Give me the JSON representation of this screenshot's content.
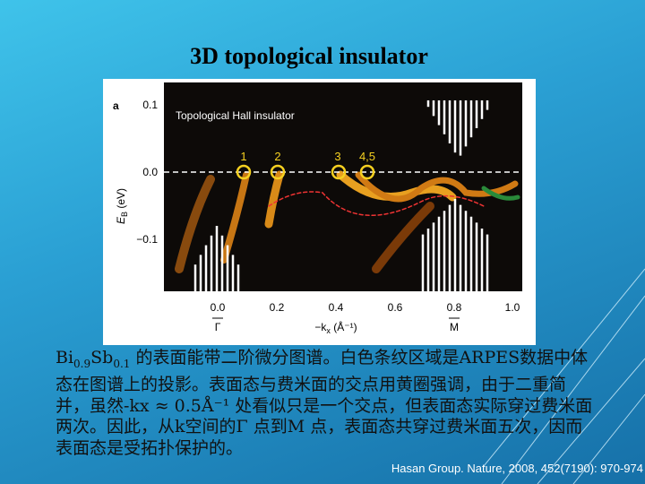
{
  "title": "3D topological insulator",
  "figure": {
    "panel": "a",
    "label": "Topological Hall insulator",
    "y_ticks": [
      "0.1",
      "0.0",
      "−0.1"
    ],
    "x_ticks": [
      "0.0",
      "0.2",
      "0.4",
      "0.6",
      "0.8",
      "1.0"
    ],
    "y_title": {
      "symbol": "E",
      "sub": "B",
      "unit": " (eV)"
    },
    "x_title": {
      "symbol": "−k",
      "sub": "x",
      "unit": " (Å⁻¹)"
    },
    "points": [
      "1",
      "2",
      "3",
      "4,5"
    ],
    "symmetry": [
      "Γ",
      "M"
    ]
  },
  "caption": {
    "formula": [
      "Bi",
      "0.9",
      "Sb",
      "0.1"
    ],
    "lines": [
      " 的表面能带二阶微分图谱。白色条纹区域是ARPES数据中体",
      "态在图谱上的投影。表面态与费米面的交点用黄圈强调，由于二重简",
      "并，虽然-kx ≈ 0.5Å⁻¹ 处看似只是一个交点，但表面态实际穿过费米面",
      "两次。因此，从k空间的Γ 点到M 点，表面态共穿过费米面五次，因而",
      "表面态是受拓扑保护的。"
    ]
  },
  "citation": "Hasan Group. Nature, 2008, 452(7190): 970-974"
}
